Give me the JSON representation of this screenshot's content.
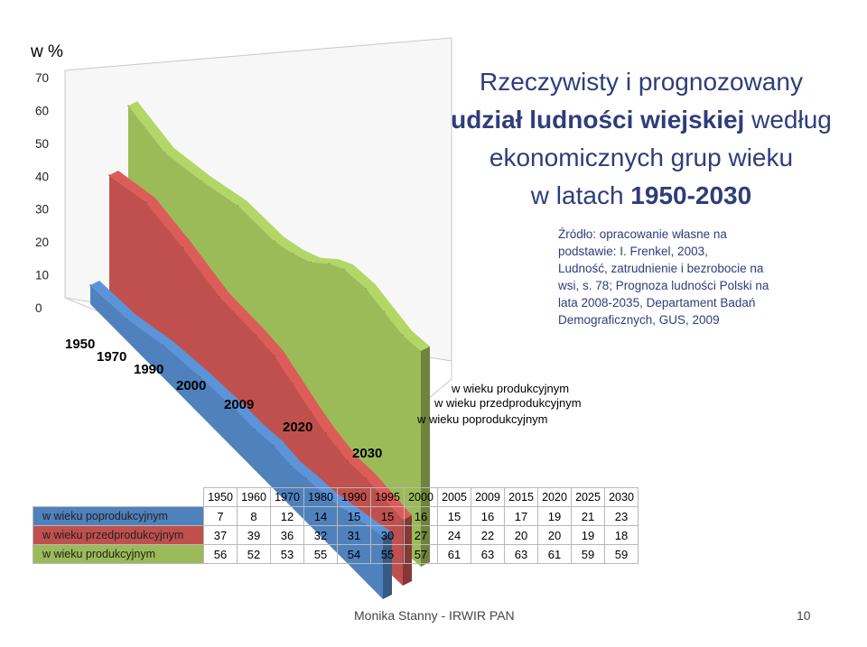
{
  "slide": {
    "title_line1": "Rzeczywisty i prognozowany",
    "title_line2_bold": "udział ludności wiejskiej",
    "title_line2_rest": " według",
    "title_line3": "ekonomicznych grup wieku",
    "title_line4_prefix": "w latach ",
    "title_line4_bold": "1950-2030",
    "source_lines": [
      "Źródło: opracowanie własne na",
      "podstawie: I. Frenkel, 2003,",
      "Ludność, zatrudnienie i bezrobocie na",
      "wsi, s. 78; Prognoza ludności Polski na",
      "lata 2008-2035, Departament Badań",
      "Demograficznych, GUS, 2009"
    ],
    "footer_author": "Monika Stanny - IRWIR PAN",
    "footer_page": "10"
  },
  "chart_data": {
    "type": "area",
    "ylabel": "w %",
    "ylim": [
      0,
      70
    ],
    "yticks": [
      "0",
      "10",
      "20",
      "30",
      "40",
      "50",
      "60",
      "70"
    ],
    "x_axis_labels": [
      "1950",
      "1970",
      "1990",
      "2000",
      "2009",
      "2020",
      "2030"
    ],
    "series_axis_labels": [
      "w wieku produkcyjnym",
      "w wieku przedprodukcyjnym",
      "w wieku poprodukcyjnym"
    ],
    "categories": [
      "1950",
      "1960",
      "1970",
      "1980",
      "1990",
      "1995",
      "2000",
      "2005",
      "2009",
      "2015",
      "2020",
      "2025",
      "2030"
    ],
    "series": [
      {
        "name": "w wieku poprodukcyjnym",
        "color": "#4f81bd",
        "values": [
          7,
          8,
          12,
          14,
          15,
          15,
          16,
          15,
          16,
          17,
          19,
          21,
          23
        ]
      },
      {
        "name": "w wieku przedprodukcyjnym",
        "color": "#c0504d",
        "values": [
          37,
          39,
          36,
          32,
          31,
          30,
          27,
          24,
          22,
          20,
          20,
          19,
          18
        ]
      },
      {
        "name": "w wieku produkcyjnym",
        "color": "#9bbb59",
        "values": [
          56,
          52,
          53,
          55,
          54,
          55,
          57,
          61,
          63,
          63,
          61,
          59,
          59
        ]
      }
    ],
    "grid": true
  }
}
